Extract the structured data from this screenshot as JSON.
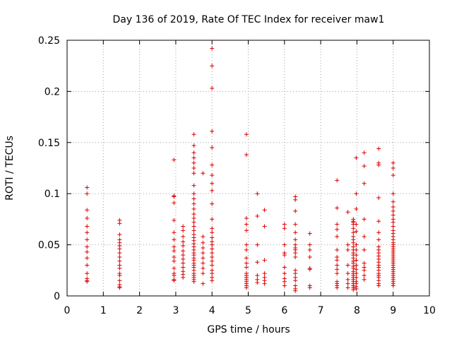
{
  "chart_data": {
    "type": "scatter",
    "title": "Day 136 of 2019, Rate Of TEC Index for receiver maw1",
    "xlabel": "GPS time / hours",
    "ylabel": "ROTI / TECUs",
    "xlim": [
      0,
      10
    ],
    "ylim": [
      0,
      0.25
    ],
    "x_ticks": [
      0,
      1,
      2,
      3,
      4,
      5,
      6,
      7,
      8,
      9,
      10
    ],
    "x_tick_labels": [
      "0",
      "1",
      "2",
      "3",
      "4",
      "5",
      "6",
      "7",
      "8",
      "9",
      "10"
    ],
    "y_ticks": [
      0,
      0.05,
      0.1,
      0.15,
      0.2,
      0.25
    ],
    "y_tick_labels": [
      "0",
      "0.05",
      "0.1",
      "0.15",
      "0.2",
      "0.25"
    ],
    "grid": true,
    "marker": "+",
    "color": "#dd0000",
    "clusters": [
      {
        "x": 0.55,
        "y": [
          0.106,
          0.1,
          0.084,
          0.076,
          0.068,
          0.062,
          0.055,
          0.048,
          0.043,
          0.037,
          0.03,
          0.022,
          0.017,
          0.015,
          0.014
        ]
      },
      {
        "x": 1.45,
        "y": [
          0.074,
          0.071,
          0.06,
          0.055,
          0.052,
          0.049,
          0.046,
          0.042,
          0.038,
          0.034,
          0.03,
          0.027,
          0.022,
          0.02,
          0.015,
          0.011,
          0.009,
          0.008
        ]
      },
      {
        "x": 2.95,
        "y": [
          0.133,
          0.098,
          0.097,
          0.091,
          0.074,
          0.062,
          0.055,
          0.048,
          0.044,
          0.038,
          0.034,
          0.027,
          0.022,
          0.02,
          0.016,
          0.015
        ]
      },
      {
        "x": 3.2,
        "y": [
          0.068,
          0.064,
          0.058,
          0.053,
          0.049,
          0.044,
          0.04,
          0.036,
          0.032,
          0.028,
          0.024,
          0.021,
          0.018
        ]
      },
      {
        "x": 3.5,
        "y": [
          0.158,
          0.147,
          0.14,
          0.135,
          0.13,
          0.125,
          0.12,
          0.108,
          0.1,
          0.095,
          0.09,
          0.085,
          0.08,
          0.076,
          0.072,
          0.068,
          0.064,
          0.06,
          0.057,
          0.054,
          0.051,
          0.048,
          0.045,
          0.042,
          0.04,
          0.037,
          0.035,
          0.032,
          0.03,
          0.028,
          0.025,
          0.022,
          0.02,
          0.018,
          0.016,
          0.014
        ]
      },
      {
        "x": 3.75,
        "y": [
          0.12,
          0.058,
          0.052,
          0.047,
          0.042,
          0.037,
          0.032,
          0.027,
          0.022,
          0.012
        ]
      },
      {
        "x": 4.0,
        "y": [
          0.242,
          0.225,
          0.203,
          0.161,
          0.145,
          0.128,
          0.118,
          0.11,
          0.103,
          0.09,
          0.075,
          0.066,
          0.062,
          0.057,
          0.053,
          0.05,
          0.046,
          0.042,
          0.038,
          0.034,
          0.03,
          0.025,
          0.022,
          0.018,
          0.015
        ]
      },
      {
        "x": 4.95,
        "y": [
          0.158,
          0.138,
          0.076,
          0.07,
          0.064,
          0.05,
          0.045,
          0.037,
          0.032,
          0.028,
          0.022,
          0.02,
          0.018,
          0.016,
          0.014,
          0.012,
          0.01,
          0.008
        ]
      },
      {
        "x": 5.25,
        "y": [
          0.1,
          0.078,
          0.05,
          0.033,
          0.02,
          0.016,
          0.013
        ]
      },
      {
        "x": 5.45,
        "y": [
          0.084,
          0.068,
          0.035,
          0.022,
          0.018,
          0.015,
          0.012
        ]
      },
      {
        "x": 6.0,
        "y": [
          0.07,
          0.066,
          0.05,
          0.042,
          0.04,
          0.028,
          0.022,
          0.017,
          0.014,
          0.01
        ]
      },
      {
        "x": 6.3,
        "y": [
          0.097,
          0.094,
          0.083,
          0.07,
          0.062,
          0.055,
          0.05,
          0.047,
          0.045,
          0.042,
          0.038,
          0.025,
          0.022,
          0.018,
          0.015,
          0.01,
          0.007,
          0.005
        ]
      },
      {
        "x": 6.7,
        "y": [
          0.061,
          0.05,
          0.045,
          0.038,
          0.027,
          0.026,
          0.01,
          0.008
        ]
      },
      {
        "x": 7.45,
        "y": [
          0.113,
          0.086,
          0.07,
          0.065,
          0.058,
          0.045,
          0.038,
          0.035,
          0.03,
          0.026,
          0.022,
          0.014,
          0.012,
          0.01,
          0.008
        ]
      },
      {
        "x": 7.75,
        "y": [
          0.082,
          0.05,
          0.045,
          0.03,
          0.022,
          0.016,
          0.012,
          0.008
        ]
      },
      {
        "x": 7.9,
        "y": [
          0.075,
          0.073,
          0.072,
          0.07,
          0.066,
          0.062,
          0.058,
          0.055,
          0.052,
          0.048,
          0.045,
          0.042,
          0.04,
          0.037,
          0.034,
          0.032,
          0.029,
          0.027,
          0.024,
          0.022,
          0.02,
          0.018,
          0.016,
          0.014,
          0.012,
          0.01,
          0.008,
          0.006
        ]
      },
      {
        "x": 7.98,
        "y": [
          0.135,
          0.1,
          0.085,
          0.07,
          0.063,
          0.05,
          0.045,
          0.04,
          0.035,
          0.03,
          0.026,
          0.022,
          0.018,
          0.014,
          0.012,
          0.009,
          0.007
        ]
      },
      {
        "x": 8.2,
        "y": [
          0.14,
          0.127,
          0.11,
          0.075,
          0.058,
          0.045,
          0.032,
          0.028,
          0.025,
          0.02,
          0.016
        ]
      },
      {
        "x": 8.6,
        "y": [
          0.144,
          0.13,
          0.128,
          0.096,
          0.073,
          0.062,
          0.055,
          0.048,
          0.045,
          0.042,
          0.039,
          0.036,
          0.033,
          0.03,
          0.028,
          0.025,
          0.022,
          0.02,
          0.018,
          0.015,
          0.012,
          0.01
        ]
      },
      {
        "x": 9.0,
        "y": [
          0.13,
          0.125,
          0.118,
          0.1,
          0.092,
          0.087,
          0.083,
          0.079,
          0.075,
          0.072,
          0.068,
          0.064,
          0.061,
          0.058,
          0.055,
          0.052,
          0.05,
          0.048,
          0.046,
          0.044,
          0.042,
          0.04,
          0.038,
          0.036,
          0.034,
          0.032,
          0.03,
          0.028,
          0.026,
          0.024,
          0.022,
          0.02,
          0.018,
          0.016,
          0.014,
          0.012,
          0.01
        ]
      }
    ]
  }
}
